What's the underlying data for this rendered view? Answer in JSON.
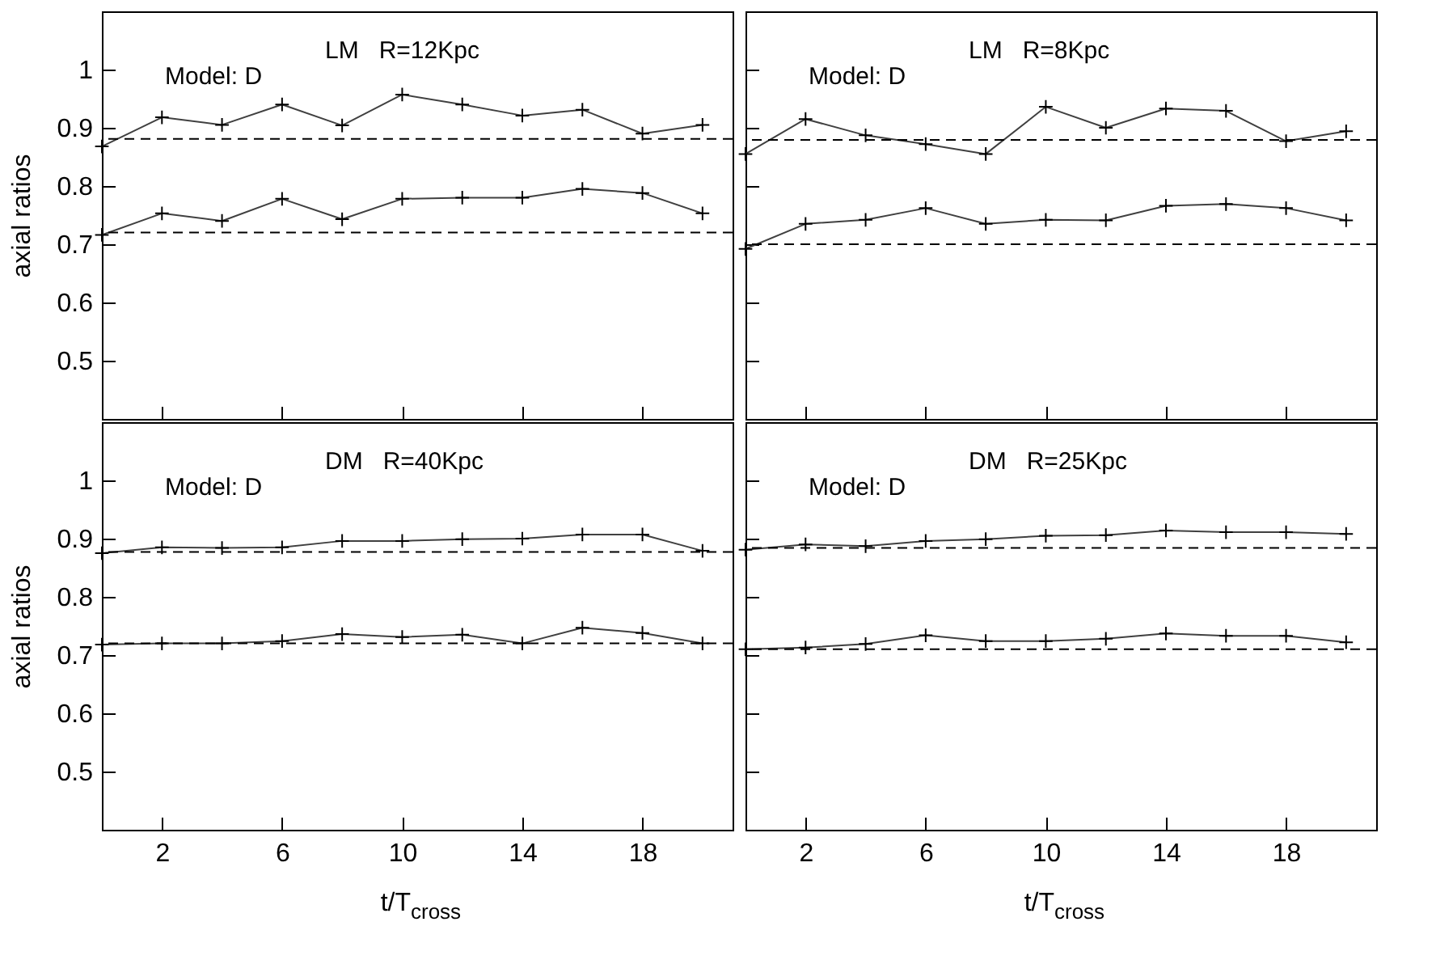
{
  "chart_data": [
    {
      "type": "line",
      "x": [
        0,
        2,
        4,
        6,
        8,
        10,
        12,
        14,
        16,
        18,
        20
      ],
      "xlim": [
        0,
        21
      ],
      "xticks": [
        2,
        6,
        10,
        14,
        18
      ],
      "ylim": [
        0.4,
        1.1
      ],
      "yticks": [
        0.5,
        0.6,
        0.7,
        0.8,
        0.9,
        1
      ],
      "ylabel": "axial ratios",
      "tick_labels": "y",
      "marker": "cross",
      "series": [
        {
          "color": "#404040",
          "values": [
            0.868,
            0.918,
            0.905,
            0.94,
            0.904,
            0.957,
            0.94,
            0.921,
            0.931,
            0.89,
            0.905
          ]
        },
        {
          "color": "#404040",
          "values": [
            0.716,
            0.753,
            0.74,
            0.778,
            0.743,
            0.778,
            0.78,
            0.78,
            0.795,
            0.788,
            0.753
          ]
        }
      ],
      "ref_lines": [
        {
          "axis": "y",
          "value": 0.881,
          "color": "#000000",
          "line_style": "dashed"
        },
        {
          "axis": "y",
          "value": 0.72,
          "color": "#000000",
          "line_style": "dashed"
        }
      ],
      "annotations": [
        "Model: D",
        "LM   R=12Kpc"
      ]
    },
    {
      "type": "line",
      "x": [
        0,
        2,
        4,
        6,
        8,
        10,
        12,
        14,
        16,
        18,
        20
      ],
      "xlim": [
        0,
        21
      ],
      "xticks": [
        2,
        6,
        10,
        14,
        18
      ],
      "ylim": [
        0.4,
        1.1
      ],
      "yticks": [
        0.5,
        0.6,
        0.7,
        0.8,
        0.9,
        1
      ],
      "tick_labels": false,
      "marker": "cross",
      "series": [
        {
          "color": "#404040",
          "values": [
            0.855,
            0.915,
            0.887,
            0.872,
            0.855,
            0.936,
            0.9,
            0.933,
            0.929,
            0.877,
            0.894
          ]
        },
        {
          "color": "#404040",
          "values": [
            0.692,
            0.735,
            0.742,
            0.762,
            0.735,
            0.742,
            0.741,
            0.766,
            0.769,
            0.762,
            0.741
          ]
        }
      ],
      "ref_lines": [
        {
          "axis": "y",
          "value": 0.879,
          "color": "#000000",
          "line_style": "dashed"
        },
        {
          "axis": "y",
          "value": 0.7,
          "color": "#000000",
          "line_style": "dashed"
        }
      ],
      "annotations": [
        "Model: D",
        "LM   R=8Kpc"
      ]
    },
    {
      "type": "line",
      "x": [
        0,
        2,
        4,
        6,
        8,
        10,
        12,
        14,
        16,
        18,
        20
      ],
      "xlim": [
        0,
        21
      ],
      "xticks": [
        2,
        6,
        10,
        14,
        18
      ],
      "ylim": [
        0.4,
        1.1
      ],
      "yticks": [
        0.5,
        0.6,
        0.7,
        0.8,
        0.9,
        1
      ],
      "xlabel": "t/T$_{cross}$",
      "ylabel": "axial ratios",
      "marker": "cross",
      "series": [
        {
          "color": "#404040",
          "values": [
            0.875,
            0.885,
            0.884,
            0.885,
            0.896,
            0.896,
            0.899,
            0.9,
            0.907,
            0.907,
            0.879
          ]
        },
        {
          "color": "#404040",
          "values": [
            0.718,
            0.72,
            0.72,
            0.724,
            0.736,
            0.731,
            0.735,
            0.72,
            0.747,
            0.738,
            0.72
          ]
        }
      ],
      "ref_lines": [
        {
          "axis": "y",
          "value": 0.877,
          "color": "#000000",
          "line_style": "dashed"
        },
        {
          "axis": "y",
          "value": 0.72,
          "color": "#000000",
          "line_style": "dashed"
        }
      ],
      "annotations": [
        "Model: D",
        "DM   R=40Kpc"
      ]
    },
    {
      "type": "line",
      "x": [
        0,
        2,
        4,
        6,
        8,
        10,
        12,
        14,
        16,
        18,
        20
      ],
      "xlim": [
        0,
        21
      ],
      "xticks": [
        2,
        6,
        10,
        14,
        18
      ],
      "ylim": [
        0.4,
        1.1
      ],
      "yticks": [
        0.5,
        0.6,
        0.7,
        0.8,
        0.9,
        1
      ],
      "xlabel": "t/T$_{cross}$",
      "tick_labels": "x",
      "marker": "cross",
      "series": [
        {
          "color": "#404040",
          "values": [
            0.881,
            0.89,
            0.887,
            0.896,
            0.899,
            0.905,
            0.906,
            0.914,
            0.911,
            0.911,
            0.908
          ]
        },
        {
          "color": "#404040",
          "values": [
            0.71,
            0.713,
            0.719,
            0.734,
            0.724,
            0.724,
            0.728,
            0.737,
            0.733,
            0.733,
            0.722
          ]
        }
      ],
      "ref_lines": [
        {
          "axis": "y",
          "value": 0.884,
          "color": "#000000",
          "line_style": "dashed"
        },
        {
          "axis": "y",
          "value": 0.71,
          "color": "#000000",
          "line_style": "dashed"
        }
      ],
      "annotations": [
        "Model: D",
        "DM   R=25Kpc"
      ]
    }
  ]
}
